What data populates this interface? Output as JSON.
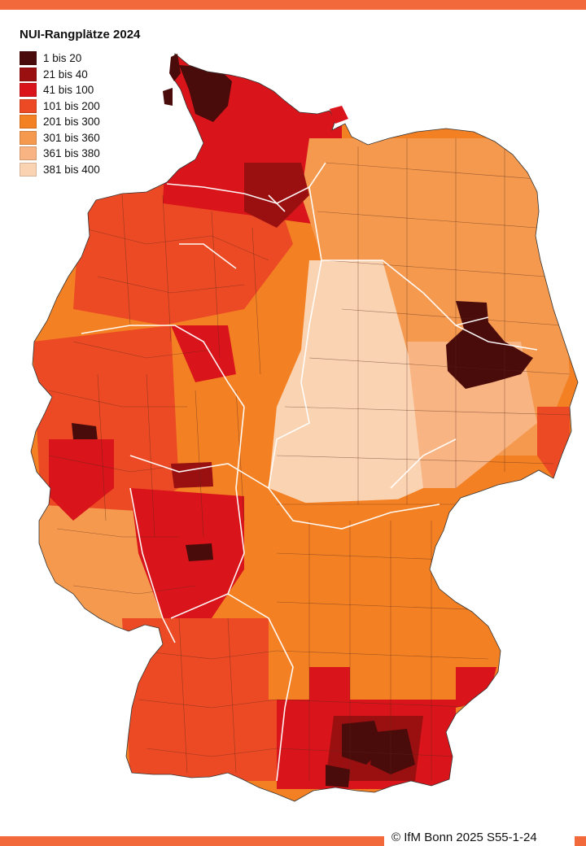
{
  "title": "NUI-Rangplätze 2024",
  "legend": [
    {
      "label": "1 bis 20",
      "color": "#4a0b0b"
    },
    {
      "label": "21 bis 40",
      "color": "#9a1010"
    },
    {
      "label": "41 bis 100",
      "color": "#d9141a"
    },
    {
      "label": "101 bis 200",
      "color": "#ec4a24"
    },
    {
      "label": "201 bis 300",
      "color": "#f38124"
    },
    {
      "label": "301 bis 360",
      "color": "#f4994e"
    },
    {
      "label": "361 bis 380",
      "color": "#f8b482"
    },
    {
      "label": "381 bis 400",
      "color": "#fad3b3"
    }
  ],
  "credit": "© IfM Bonn 2025 S55-1-24",
  "accent_color": "#f26a3b"
}
